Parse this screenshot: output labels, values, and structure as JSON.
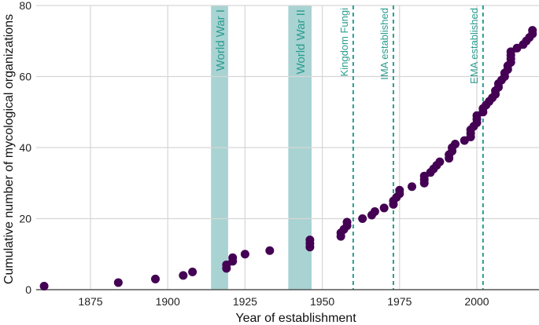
{
  "chart_data": {
    "type": "scatter",
    "title": "",
    "xlabel": "Year of establishment",
    "ylabel": "Cumulative number of mycological organizations",
    "xlim": [
      1858,
      2020
    ],
    "ylim": [
      0,
      80
    ],
    "xticks": [
      1875,
      1900,
      1925,
      1950,
      1975,
      2000
    ],
    "yticks": [
      0,
      20,
      40,
      60,
      80
    ],
    "grid": true,
    "point_color": "#440154",
    "annotation_color": "#2a9d8f",
    "band_color": "#a8d3d2",
    "bands": [
      {
        "label": "World War I",
        "start": 1914,
        "end": 1918
      },
      {
        "label": "World War II",
        "start": 1939,
        "end": 1945
      }
    ],
    "vlines": [
      {
        "label": "Kingdom Fungi",
        "x": 1960
      },
      {
        "label": "IMA established",
        "x": 1973
      },
      {
        "label": "EMA established",
        "x": 2002
      }
    ],
    "series": [
      {
        "name": "Mycological organizations",
        "points": [
          [
            1860,
            1
          ],
          [
            1884,
            2
          ],
          [
            1896,
            3
          ],
          [
            1905,
            4
          ],
          [
            1908,
            5
          ],
          [
            1919,
            6
          ],
          [
            1919,
            7
          ],
          [
            1921,
            8
          ],
          [
            1921,
            9
          ],
          [
            1925,
            10
          ],
          [
            1933,
            11
          ],
          [
            1946,
            12
          ],
          [
            1946,
            13
          ],
          [
            1946,
            14
          ],
          [
            1956,
            15
          ],
          [
            1956,
            16
          ],
          [
            1957,
            17
          ],
          [
            1958,
            18
          ],
          [
            1958,
            19
          ],
          [
            1963,
            20
          ],
          [
            1966,
            21
          ],
          [
            1967,
            22
          ],
          [
            1970,
            23
          ],
          [
            1973,
            24
          ],
          [
            1973,
            25
          ],
          [
            1974,
            26
          ],
          [
            1975,
            27
          ],
          [
            1975,
            28
          ],
          [
            1979,
            29
          ],
          [
            1983,
            30
          ],
          [
            1983,
            31
          ],
          [
            1983,
            32
          ],
          [
            1985,
            33
          ],
          [
            1986,
            34
          ],
          [
            1987,
            35
          ],
          [
            1988,
            36
          ],
          [
            1991,
            37
          ],
          [
            1991,
            38
          ],
          [
            1992,
            39
          ],
          [
            1992,
            40
          ],
          [
            1993,
            41
          ],
          [
            1996,
            42
          ],
          [
            1998,
            43
          ],
          [
            1998,
            44
          ],
          [
            1998,
            45
          ],
          [
            1999,
            46
          ],
          [
            2000,
            47
          ],
          [
            2000,
            48
          ],
          [
            2000,
            49
          ],
          [
            2002,
            50
          ],
          [
            2002,
            51
          ],
          [
            2003,
            52
          ],
          [
            2004,
            53
          ],
          [
            2005,
            54
          ],
          [
            2006,
            55
          ],
          [
            2006,
            56
          ],
          [
            2007,
            57
          ],
          [
            2007,
            58
          ],
          [
            2008,
            59
          ],
          [
            2009,
            60
          ],
          [
            2009,
            61
          ],
          [
            2010,
            62
          ],
          [
            2010,
            63
          ],
          [
            2011,
            64
          ],
          [
            2011,
            65
          ],
          [
            2011,
            66
          ],
          [
            2011,
            67
          ],
          [
            2013,
            68
          ],
          [
            2015,
            69
          ],
          [
            2016,
            70
          ],
          [
            2017,
            71
          ],
          [
            2018,
            72
          ],
          [
            2018,
            73
          ]
        ]
      }
    ]
  }
}
